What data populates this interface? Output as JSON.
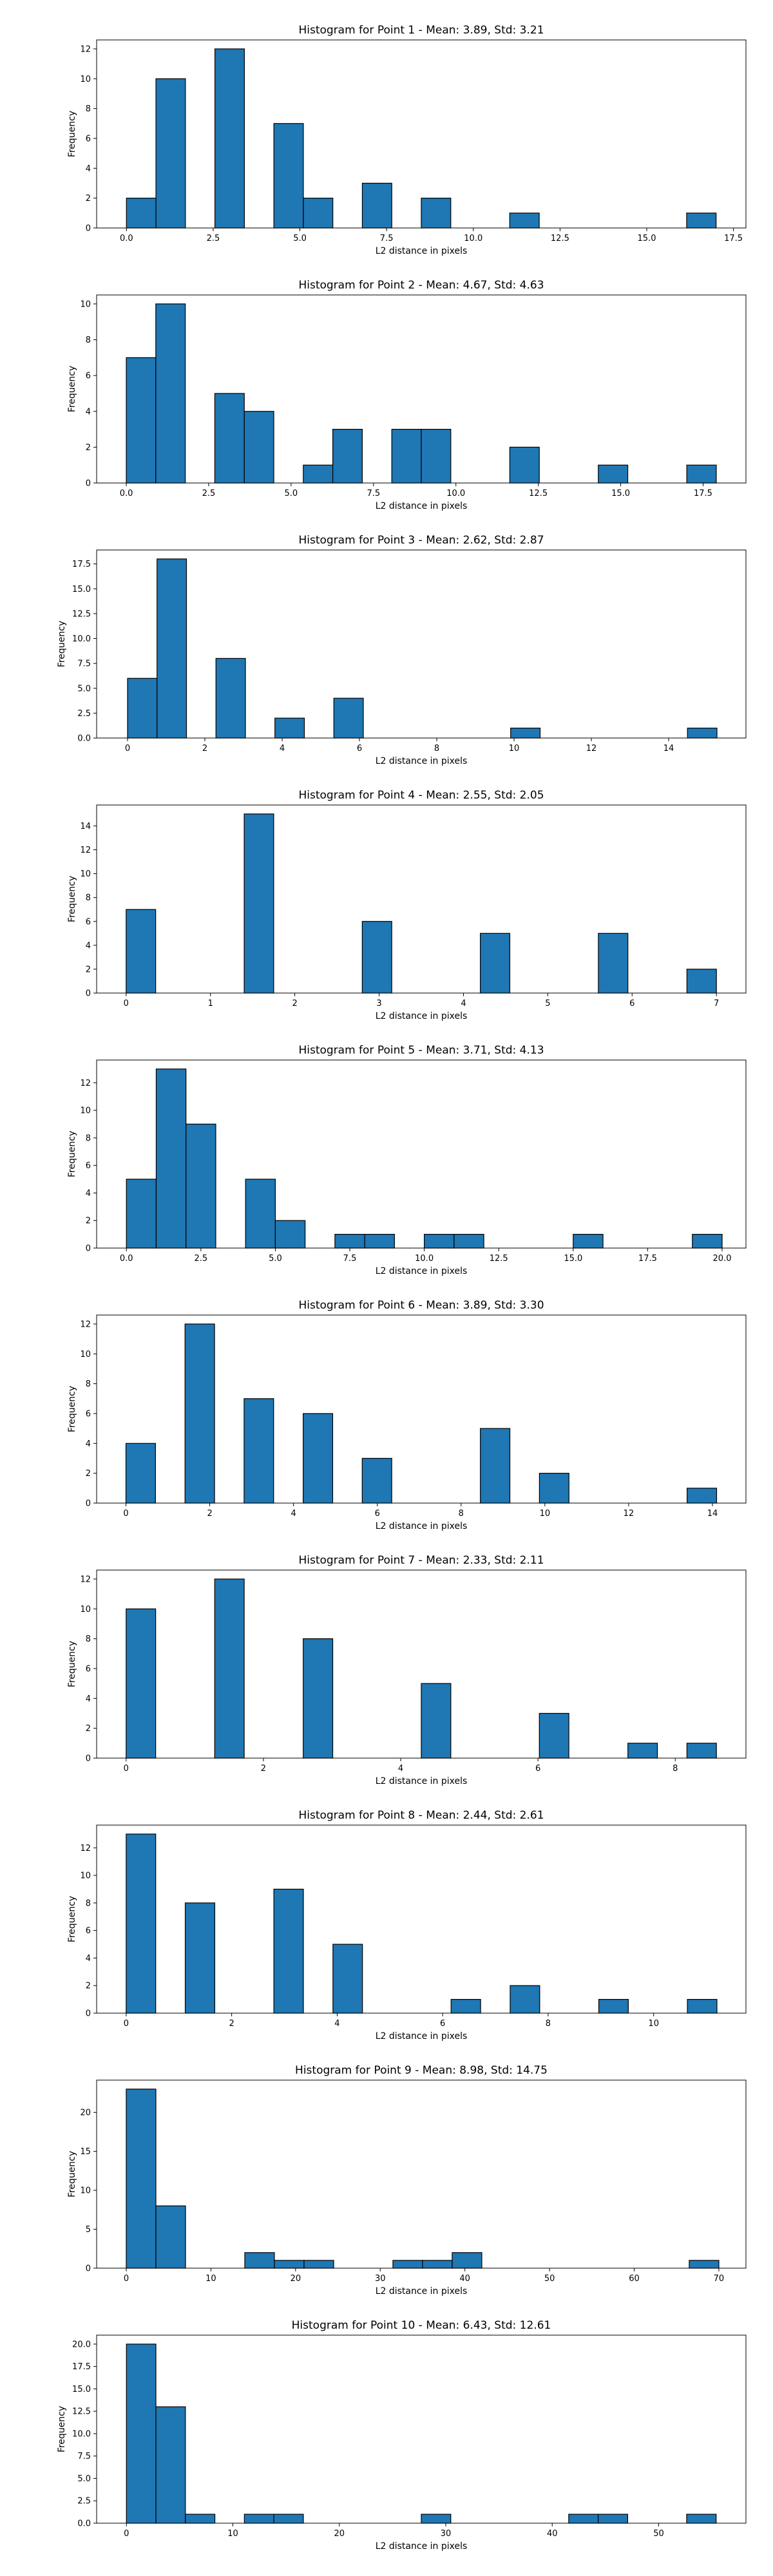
{
  "figure": {
    "background": "#ffffff",
    "bar_color": "#1f77b4",
    "edge_color": "#000000"
  },
  "chart_data": [
    {
      "type": "bar",
      "title": "Histogram for Point 1 - Mean: 3.89, Std: 3.21",
      "xlabel": "L2 distance in pixels",
      "ylabel": "Frequency",
      "xlim": [
        -0.86,
        17.86
      ],
      "ylim": [
        0,
        12.6
      ],
      "xticks": [
        0,
        2.5,
        5,
        7.5,
        10,
        12.5,
        15,
        17.5
      ],
      "xtick_labels": [
        "0.0",
        "2.5",
        "5.0",
        "7.5",
        "10.0",
        "12.5",
        "15.0",
        "17.5"
      ],
      "yticks": [
        0,
        2,
        4,
        6,
        8,
        10,
        12
      ],
      "ytick_labels": [
        "0",
        "2",
        "4",
        "6",
        "8",
        "10",
        "12"
      ],
      "bin_start": 0,
      "bin_width": 0.85,
      "values": [
        2,
        10,
        0,
        12,
        0,
        7,
        2,
        0,
        3,
        0,
        2,
        0,
        0,
        1,
        0,
        0,
        0,
        0,
        0,
        1
      ]
    },
    {
      "type": "bar",
      "title": "Histogram for Point 2 - Mean: 4.67, Std: 4.63",
      "xlabel": "L2 distance in pixels",
      "ylabel": "Frequency",
      "xlim": [
        -0.9,
        18.8
      ],
      "ylim": [
        0,
        10.5
      ],
      "xticks": [
        0,
        2.5,
        5,
        7.5,
        10,
        12.5,
        15,
        17.5
      ],
      "xtick_labels": [
        "0.0",
        "2.5",
        "5.0",
        "7.5",
        "10.0",
        "12.5",
        "15.0",
        "17.5"
      ],
      "yticks": [
        0,
        2,
        4,
        6,
        8,
        10
      ],
      "ytick_labels": [
        "0",
        "2",
        "4",
        "6",
        "8",
        "10"
      ],
      "bin_start": 0,
      "bin_width": 0.895,
      "values": [
        7,
        10,
        0,
        5,
        4,
        0,
        1,
        3,
        0,
        3,
        3,
        0,
        0,
        2,
        0,
        0,
        1,
        0,
        0,
        1
      ]
    },
    {
      "type": "bar",
      "title": "Histogram for Point 3 - Mean: 2.62, Std: 2.87",
      "xlabel": "L2 distance in pixels",
      "ylabel": "Frequency",
      "xlim": [
        -0.8,
        16.0
      ],
      "ylim": [
        0,
        18.9
      ],
      "xticks": [
        0,
        2,
        4,
        6,
        8,
        10,
        12,
        14
      ],
      "xtick_labels": [
        "0",
        "2",
        "4",
        "6",
        "8",
        "10",
        "12",
        "14"
      ],
      "yticks": [
        0,
        2.5,
        5,
        7.5,
        10,
        12.5,
        15,
        17.5
      ],
      "ytick_labels": [
        "0.0",
        "2.5",
        "5.0",
        "7.5",
        "10.0",
        "12.5",
        "15.0",
        "17.5"
      ],
      "bin_start": 0,
      "bin_width": 0.7625,
      "values": [
        6,
        18,
        0,
        8,
        0,
        2,
        0,
        4,
        0,
        0,
        0,
        0,
        0,
        1,
        0,
        0,
        0,
        0,
        0,
        1
      ]
    },
    {
      "type": "bar",
      "title": "Histogram for Point 4 - Mean: 2.55, Std: 2.05",
      "xlabel": "L2 distance in pixels",
      "ylabel": "Frequency",
      "xlim": [
        -0.35,
        7.35
      ],
      "ylim": [
        0,
        15.75
      ],
      "xticks": [
        0,
        1,
        2,
        3,
        4,
        5,
        6,
        7
      ],
      "xtick_labels": [
        "0",
        "1",
        "2",
        "3",
        "4",
        "5",
        "6",
        "7"
      ],
      "yticks": [
        0,
        2,
        4,
        6,
        8,
        10,
        12,
        14
      ],
      "ytick_labels": [
        "0",
        "2",
        "4",
        "6",
        "8",
        "10",
        "12",
        "14"
      ],
      "bin_start": 0,
      "bin_width": 0.35,
      "values": [
        7,
        0,
        0,
        0,
        15,
        0,
        0,
        0,
        6,
        0,
        0,
        0,
        5,
        0,
        0,
        0,
        5,
        0,
        0,
        2
      ]
    },
    {
      "type": "bar",
      "title": "Histogram for Point 5 - Mean: 3.71, Std: 4.13",
      "xlabel": "L2 distance in pixels",
      "ylabel": "Frequency",
      "xlim": [
        -1.0,
        20.8
      ],
      "ylim": [
        0,
        13.65
      ],
      "xticks": [
        0,
        2.5,
        5,
        7.5,
        10,
        12.5,
        15,
        17.5,
        20
      ],
      "xtick_labels": [
        "0.0",
        "2.5",
        "5.0",
        "7.5",
        "10.0",
        "12.5",
        "15.0",
        "17.5",
        "20.0"
      ],
      "yticks": [
        0,
        2,
        4,
        6,
        8,
        10,
        12
      ],
      "ytick_labels": [
        "0",
        "2",
        "4",
        "6",
        "8",
        "10",
        "12"
      ],
      "bin_start": 0,
      "bin_width": 1.0,
      "values": [
        5,
        13,
        9,
        0,
        5,
        2,
        0,
        1,
        1,
        0,
        1,
        1,
        0,
        0,
        0,
        1,
        0,
        0,
        0,
        1
      ]
    },
    {
      "type": "bar",
      "title": "Histogram for Point 6 - Mean: 3.89, Std: 3.30",
      "xlabel": "L2 distance in pixels",
      "ylabel": "Frequency",
      "xlim": [
        -0.7,
        14.8
      ],
      "ylim": [
        0,
        12.6
      ],
      "xticks": [
        0,
        2,
        4,
        6,
        8,
        10,
        12,
        14
      ],
      "xtick_labels": [
        "0",
        "2",
        "4",
        "6",
        "8",
        "10",
        "12",
        "14"
      ],
      "yticks": [
        0,
        2,
        4,
        6,
        8,
        10,
        12
      ],
      "ytick_labels": [
        "0",
        "2",
        "4",
        "6",
        "8",
        "10",
        "12"
      ],
      "bin_start": 0,
      "bin_width": 0.705,
      "values": [
        4,
        0,
        12,
        0,
        7,
        0,
        6,
        0,
        3,
        0,
        0,
        0,
        5,
        0,
        2,
        0,
        0,
        0,
        0,
        1
      ]
    },
    {
      "type": "bar",
      "title": "Histogram for Point 7 - Mean: 2.33, Std: 2.11",
      "xlabel": "L2 distance in pixels",
      "ylabel": "Frequency",
      "xlim": [
        -0.43,
        9.03
      ],
      "ylim": [
        0,
        12.6
      ],
      "xticks": [
        0,
        2,
        4,
        6,
        8
      ],
      "xtick_labels": [
        "0",
        "2",
        "4",
        "6",
        "8"
      ],
      "yticks": [
        0,
        2,
        4,
        6,
        8,
        10,
        12
      ],
      "ytick_labels": [
        "0",
        "2",
        "4",
        "6",
        "8",
        "10",
        "12"
      ],
      "bin_start": 0,
      "bin_width": 0.43,
      "values": [
        10,
        0,
        0,
        12,
        0,
        0,
        8,
        0,
        0,
        0,
        5,
        0,
        0,
        0,
        3,
        0,
        0,
        1,
        0,
        1
      ]
    },
    {
      "type": "bar",
      "title": "Histogram for Point 8 - Mean: 2.44, Std: 2.61",
      "xlabel": "L2 distance in pixels",
      "ylabel": "Frequency",
      "xlim": [
        -0.56,
        11.75
      ],
      "ylim": [
        0,
        13.65
      ],
      "xticks": [
        0,
        2,
        4,
        6,
        8,
        10
      ],
      "xtick_labels": [
        "0",
        "2",
        "4",
        "6",
        "8",
        "10"
      ],
      "yticks": [
        0,
        2,
        4,
        6,
        8,
        10,
        12
      ],
      "ytick_labels": [
        "0",
        "2",
        "4",
        "6",
        "8",
        "10",
        "12"
      ],
      "bin_start": 0,
      "bin_width": 0.56,
      "values": [
        13,
        0,
        8,
        0,
        0,
        9,
        0,
        5,
        0,
        0,
        0,
        1,
        0,
        2,
        0,
        0,
        1,
        0,
        0,
        1
      ]
    },
    {
      "type": "bar",
      "title": "Histogram for Point 9 - Mean: 8.98, Std: 14.75",
      "xlabel": "L2 distance in pixels",
      "ylabel": "Frequency",
      "xlim": [
        -3.5,
        73.2
      ],
      "ylim": [
        0,
        24.15
      ],
      "xticks": [
        0,
        10,
        20,
        30,
        40,
        50,
        60,
        70
      ],
      "xtick_labels": [
        "0",
        "10",
        "20",
        "30",
        "40",
        "50",
        "60",
        "70"
      ],
      "yticks": [
        0,
        5,
        10,
        15,
        20
      ],
      "ytick_labels": [
        "0",
        "5",
        "10",
        "15",
        "20"
      ],
      "bin_start": 0,
      "bin_width": 3.5,
      "values": [
        23,
        8,
        0,
        0,
        2,
        1,
        1,
        0,
        0,
        1,
        1,
        2,
        0,
        0,
        0,
        0,
        0,
        0,
        0,
        1
      ]
    },
    {
      "type": "bar",
      "title": "Histogram for Point 10 - Mean: 6.43, Std: 12.61",
      "xlabel": "L2 distance in pixels",
      "ylabel": "Frequency",
      "xlim": [
        -2.8,
        58.2
      ],
      "ylim": [
        0,
        21.0
      ],
      "xticks": [
        0,
        10,
        20,
        30,
        40,
        50
      ],
      "xtick_labels": [
        "0",
        "10",
        "20",
        "30",
        "40",
        "50"
      ],
      "yticks": [
        0,
        2.5,
        5,
        7.5,
        10,
        12.5,
        15,
        17.5,
        20
      ],
      "ytick_labels": [
        "0.0",
        "2.5",
        "5.0",
        "7.5",
        "10.0",
        "12.5",
        "15.0",
        "17.5",
        "20.0"
      ],
      "bin_start": 0,
      "bin_width": 2.77,
      "values": [
        20,
        13,
        1,
        0,
        1,
        1,
        0,
        0,
        0,
        0,
        1,
        0,
        0,
        0,
        0,
        1,
        1,
        0,
        0,
        1
      ]
    }
  ]
}
